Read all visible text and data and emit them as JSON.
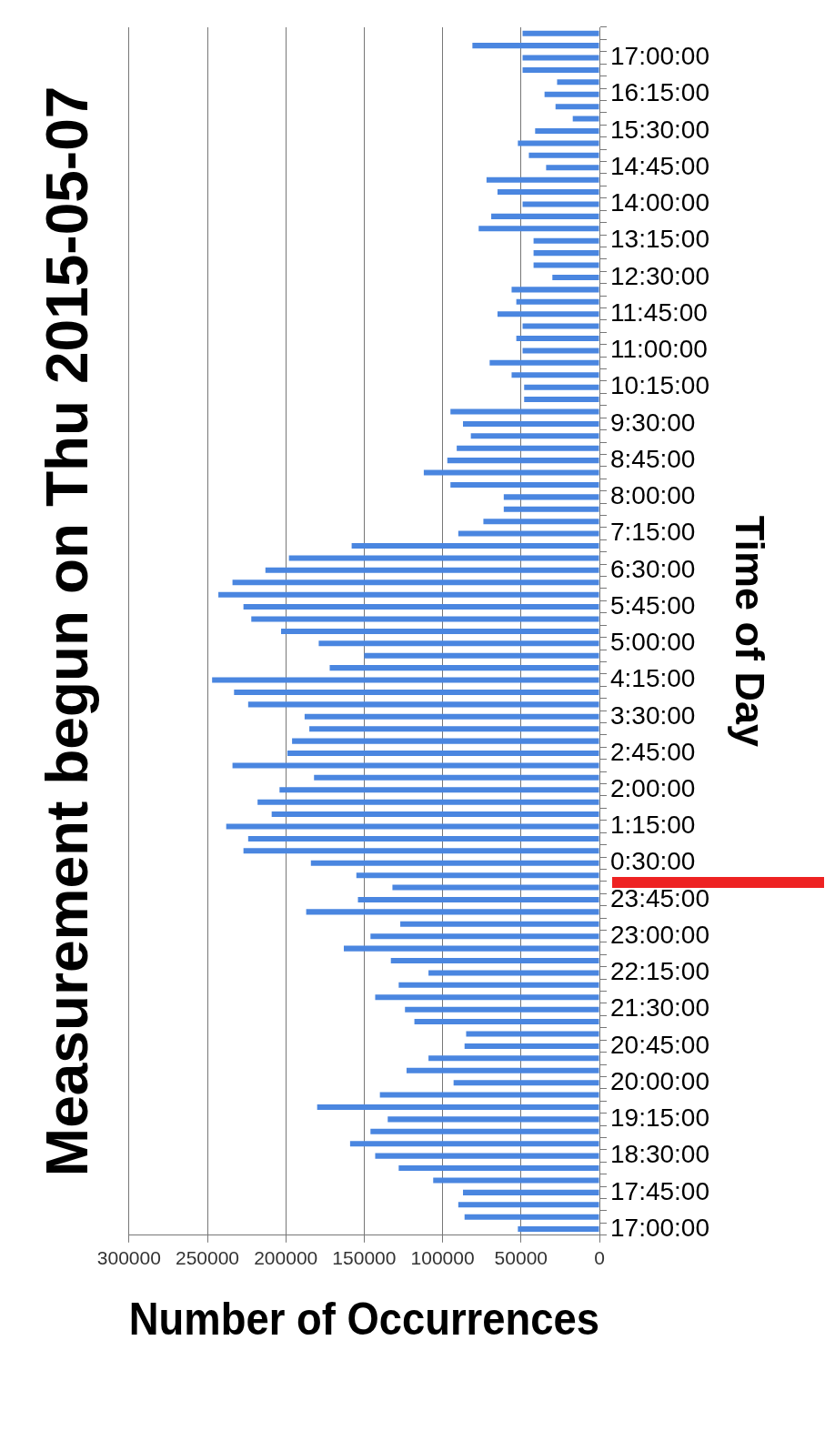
{
  "chart_data": {
    "type": "bar",
    "orientation": "horizontal",
    "title": "Measurement begun on Thu 2015-05-07",
    "xlabel": "Number of Occurrences",
    "ylabel": "Time of Day",
    "categories": [
      null,
      null,
      "17:00:00",
      null,
      null,
      "16:15:00",
      null,
      null,
      "15:30:00",
      null,
      null,
      "14:45:00",
      null,
      null,
      "14:00:00",
      null,
      null,
      "13:15:00",
      null,
      null,
      "12:30:00",
      null,
      null,
      "11:45:00",
      null,
      null,
      "11:00:00",
      null,
      null,
      "10:15:00",
      null,
      null,
      "9:30:00",
      null,
      null,
      "8:45:00",
      null,
      null,
      "8:00:00",
      null,
      null,
      "7:15:00",
      null,
      null,
      "6:30:00",
      null,
      null,
      "5:45:00",
      null,
      null,
      "5:00:00",
      null,
      null,
      "4:15:00",
      null,
      null,
      "3:30:00",
      null,
      null,
      "2:45:00",
      null,
      null,
      "2:00:00",
      null,
      null,
      "1:15:00",
      null,
      null,
      "0:30:00",
      null,
      null,
      "23:45:00",
      null,
      null,
      "23:00:00",
      null,
      null,
      "22:15:00",
      null,
      null,
      "21:30:00",
      null,
      null,
      "20:45:00",
      null,
      null,
      "20:00:00",
      null,
      null,
      "19:15:00",
      null,
      null,
      "18:30:00",
      null,
      null,
      "17:45:00",
      null,
      null,
      "17:00:00"
    ],
    "values": [
      49000,
      81000,
      49000,
      49000,
      27000,
      35000,
      28000,
      17000,
      41000,
      52000,
      45000,
      34000,
      72000,
      65000,
      49000,
      69000,
      77000,
      42000,
      42000,
      42000,
      30000,
      56000,
      53000,
      65000,
      49000,
      53000,
      49000,
      70000,
      56000,
      48000,
      48000,
      95000,
      87000,
      82000,
      91000,
      97000,
      112000,
      95000,
      61000,
      61000,
      74000,
      90000,
      158000,
      198000,
      213000,
      234000,
      243000,
      227000,
      222000,
      203000,
      179000,
      150000,
      172000,
      247000,
      233000,
      224000,
      188000,
      185000,
      196000,
      199000,
      234000,
      182000,
      204000,
      218000,
      209000,
      238000,
      224000,
      227000,
      184000,
      155000,
      132000,
      154000,
      187000,
      127000,
      146000,
      163000,
      133000,
      109000,
      128000,
      143000,
      124000,
      118000,
      85000,
      86000,
      109000,
      123000,
      93000,
      140000,
      180000,
      135000,
      146000,
      159000,
      143000,
      128000,
      106000,
      87000,
      90000,
      86000,
      52000
    ],
    "color": "#4a86e0",
    "xlim": [
      300000,
      0
    ],
    "xticks": [
      300000,
      250000,
      200000,
      150000,
      100000,
      50000,
      0
    ],
    "grid": "x",
    "legend": false
  }
}
